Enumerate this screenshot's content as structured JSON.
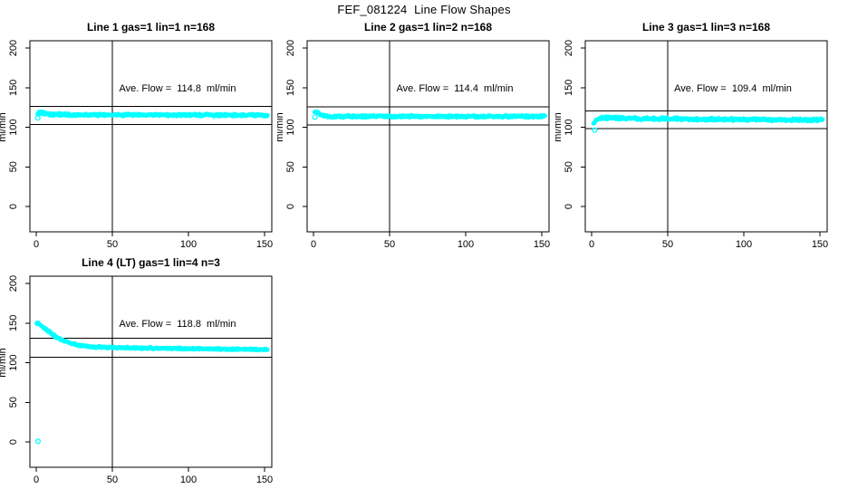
{
  "page_title": "FEF_081224  Line Flow Shapes",
  "colors": {
    "points": "#00FFFF",
    "axis": "#000000",
    "background": "#FFFFFF"
  },
  "chart_data": {
    "type": "scatter",
    "title": "FEF_081224  Line Flow Shapes",
    "ylabel": "ml/min",
    "xlabel": "",
    "x_ticks": [
      0,
      50,
      100,
      150
    ],
    "y_ticks": [
      0,
      50,
      100,
      150,
      200
    ],
    "xlim": [
      0,
      152
    ],
    "ylim": [
      0,
      200
    ],
    "grid": false,
    "marker": "open-circle",
    "reference_vline_x": 50,
    "panels": [
      {
        "title": "Line 1 gas=1 lin=1 n=168",
        "ave_flow_label": "Ave. Flow =  114.8  ml/min",
        "average_flow_ml_min": 114.8,
        "n": 168,
        "hlines": [
          126.3,
          103.3
        ],
        "band_profile": [
          [
            0.8,
            116.0,
            1.2
          ],
          [
            2,
            118.8,
            2.2
          ],
          [
            4,
            118.3,
            2.2
          ],
          [
            7,
            116.8,
            2.0
          ],
          [
            12,
            116.0,
            2.0
          ],
          [
            25,
            115.6,
            1.9
          ],
          [
            60,
            115.4,
            1.8
          ],
          [
            100,
            115.3,
            1.8
          ],
          [
            152,
            115.2,
            1.8
          ]
        ],
        "outlier_points": [
          [
            1.0,
            111.8
          ]
        ]
      },
      {
        "title": "Line 2 gas=1 lin=2 n=168",
        "ave_flow_label": "Ave. Flow =  114.4  ml/min",
        "average_flow_ml_min": 114.4,
        "n": 168,
        "hlines": [
          125.8,
          103.0
        ],
        "band_profile": [
          [
            0.8,
            118.5,
            1.2
          ],
          [
            2,
            119.8,
            1.8
          ],
          [
            4,
            117.0,
            1.8
          ],
          [
            8,
            114.2,
            1.8
          ],
          [
            14,
            113.3,
            1.7
          ],
          [
            30,
            113.6,
            1.7
          ],
          [
            60,
            113.7,
            1.7
          ],
          [
            100,
            113.6,
            1.7
          ],
          [
            152,
            113.5,
            1.7
          ]
        ],
        "outlier_points": [
          [
            1.0,
            112.8
          ]
        ]
      },
      {
        "title": "Line 3 gas=1 lin=3 n=168",
        "ave_flow_label": "Ave. Flow =  109.4  ml/min",
        "average_flow_ml_min": 109.4,
        "n": 168,
        "hlines": [
          120.3,
          98.5
        ],
        "band_profile": [
          [
            1.2,
            104.5,
            1.2
          ],
          [
            3,
            108.5,
            2.2
          ],
          [
            5,
            111.0,
            2.3
          ],
          [
            8,
            111.8,
            2.3
          ],
          [
            15,
            111.6,
            2.2
          ],
          [
            30,
            111.0,
            2.2
          ],
          [
            60,
            110.4,
            2.1
          ],
          [
            100,
            109.7,
            2.0
          ],
          [
            152,
            109.0,
            2.0
          ]
        ],
        "outlier_points": [
          [
            2.0,
            96.3
          ]
        ]
      },
      {
        "title": "Line 4 (LT) gas=1 lin=4 n=3",
        "ave_flow_label": "Ave. Flow =  118.8  ml/min",
        "average_flow_ml_min": 118.8,
        "n": 3,
        "hlines": [
          130.7,
          106.9
        ],
        "band_profile": [
          [
            0.8,
            149.8,
            1.3
          ],
          [
            2.5,
            147.8,
            1.6
          ],
          [
            5,
            144.3,
            1.7
          ],
          [
            8,
            139.8,
            1.7
          ],
          [
            11,
            135.3,
            1.7
          ],
          [
            14,
            131.5,
            1.6
          ],
          [
            17,
            128.6,
            1.6
          ],
          [
            20,
            126.2,
            1.5
          ],
          [
            24,
            123.7,
            1.5
          ],
          [
            28,
            121.9,
            1.5
          ],
          [
            34,
            120.4,
            1.5
          ],
          [
            42,
            119.4,
            1.4
          ],
          [
            55,
            118.8,
            1.4
          ],
          [
            75,
            118.3,
            1.4
          ],
          [
            100,
            117.7,
            1.4
          ],
          [
            125,
            117.1,
            1.4
          ],
          [
            152,
            116.4,
            1.4
          ]
        ],
        "outlier_points": [
          [
            0.7,
            149.6
          ],
          [
            1.2,
            0.8
          ]
        ]
      }
    ]
  }
}
